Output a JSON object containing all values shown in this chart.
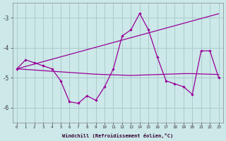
{
  "xlabel": "Windchill (Refroidissement éolien,°C)",
  "bg_color": "#cce8e8",
  "grid_color": "#aacccc",
  "line_color": "#990099",
  "x_hours": [
    0,
    1,
    2,
    3,
    4,
    5,
    6,
    7,
    8,
    9,
    10,
    11,
    12,
    13,
    14,
    15,
    16,
    17,
    18,
    19,
    20,
    21,
    22,
    23
  ],
  "series_main": [
    -4.7,
    -4.4,
    -4.5,
    -4.6,
    -4.7,
    -5.1,
    -5.8,
    -5.85,
    -5.6,
    -5.75,
    -5.3,
    -4.7,
    -3.6,
    -3.4,
    -2.85,
    -3.4,
    -4.3,
    -5.1,
    -5.2,
    -5.3,
    -5.55,
    -4.1,
    -4.1,
    -5.0
  ],
  "series_diag": [
    -4.7,
    -4.62,
    -4.54,
    -4.46,
    -4.38,
    -4.3,
    -4.22,
    -4.14,
    -4.06,
    -3.98,
    -3.9,
    -3.82,
    -3.74,
    -3.66,
    -3.58,
    -3.5,
    -3.42,
    -3.34,
    -3.26,
    -3.18,
    -3.1,
    -3.02,
    -2.94,
    -2.86
  ],
  "series_flat": [
    -4.7,
    -4.72,
    -4.74,
    -4.76,
    -4.78,
    -4.8,
    -4.82,
    -4.84,
    -4.86,
    -4.88,
    -4.89,
    -4.9,
    -4.91,
    -4.92,
    -4.91,
    -4.9,
    -4.89,
    -4.88,
    -4.87,
    -4.86,
    -4.86,
    -4.87,
    -4.88,
    -4.89
  ],
  "ylim": [
    -6.5,
    -2.5
  ],
  "yticks": [
    -6,
    -5,
    -4,
    -3
  ]
}
